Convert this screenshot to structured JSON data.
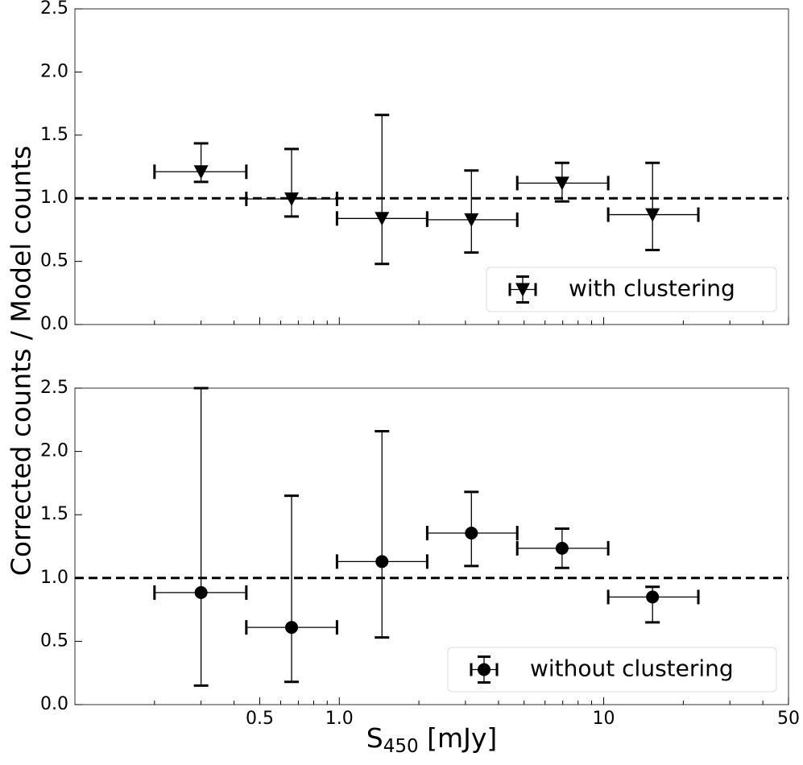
{
  "chart_data": [
    {
      "type": "scatter",
      "xscale": "log",
      "xlim": [
        0.1,
        50
      ],
      "ylim": [
        0,
        2.5
      ],
      "yticks": [
        {
          "value": 0,
          "label": "0.0"
        },
        0.5,
        {
          "value": 1,
          "label": "1.0"
        },
        1.5,
        {
          "value": 2,
          "label": "2.0"
        },
        2.5
      ],
      "hline": 1,
      "legend": "lower right",
      "series": [
        {
          "name": "with clustering",
          "color": "#000000",
          "marker": "triangle-down",
          "x": [
            0.3,
            0.66,
            1.45,
            3.16,
            6.96,
            15.3
          ],
          "x_low": [
            0.2,
            0.445,
            0.98,
            2.15,
            4.71,
            10.4
          ],
          "x_high": [
            0.445,
            0.98,
            2.15,
            4.71,
            10.4,
            22.8
          ],
          "values": [
            1.21,
            0.995,
            0.84,
            0.83,
            1.12,
            0.87
          ],
          "y_low": [
            1.13,
            0.855,
            0.48,
            0.57,
            0.975,
            0.59
          ],
          "y_high": [
            1.435,
            1.39,
            1.66,
            1.22,
            1.28,
            1.28
          ]
        }
      ]
    },
    {
      "type": "scatter",
      "xscale": "log",
      "xlim": [
        0.1,
        50
      ],
      "ylim": [
        0,
        2.5
      ],
      "xticks": [
        0.5,
        {
          "value": 1,
          "label": "1.0"
        },
        10,
        50
      ],
      "yticks": [
        {
          "value": 0,
          "label": "0.0"
        },
        0.5,
        {
          "value": 1,
          "label": "1.0"
        },
        1.5,
        {
          "value": 2,
          "label": "2.0"
        },
        2.5
      ],
      "hline": 1,
      "legend": "lower right",
      "x_label": {
        "main": "S",
        "sub": "450",
        "unit": " [mJy]"
      },
      "series": [
        {
          "name": "without clustering",
          "color": "#000000",
          "marker": "circle",
          "x": [
            0.3,
            0.66,
            1.45,
            3.16,
            6.96,
            15.3
          ],
          "x_low": [
            0.2,
            0.445,
            0.98,
            2.15,
            4.71,
            10.4
          ],
          "x_high": [
            0.445,
            0.98,
            2.15,
            4.71,
            10.4,
            22.8
          ],
          "values": [
            0.885,
            0.61,
            1.13,
            1.355,
            1.235,
            0.85
          ],
          "y_low": [
            0.15,
            0.18,
            0.53,
            1.095,
            1.08,
            0.65
          ],
          "y_high": [
            2.5,
            1.65,
            2.16,
            1.68,
            1.39,
            0.93
          ]
        }
      ]
    }
  ],
  "y_label": "Corrected counts / Model counts"
}
